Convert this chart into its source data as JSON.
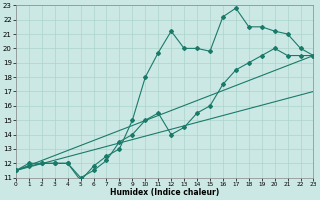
{
  "xlabel": "Humidex (Indice chaleur)",
  "xlim": [
    0,
    23
  ],
  "ylim": [
    11,
    23
  ],
  "xticks": [
    0,
    1,
    2,
    3,
    4,
    5,
    6,
    7,
    8,
    9,
    10,
    11,
    12,
    13,
    14,
    15,
    16,
    17,
    18,
    19,
    20,
    21,
    22,
    23
  ],
  "yticks": [
    11,
    12,
    13,
    14,
    15,
    16,
    17,
    18,
    19,
    20,
    21,
    22,
    23
  ],
  "bg_color": "#cce8e4",
  "grid_color": "#aad4cc",
  "line_color": "#1a7a6a",
  "line1_x": [
    0,
    1,
    2,
    3,
    4,
    5,
    6,
    7,
    8,
    9,
    10,
    11,
    12,
    13,
    14,
    15,
    16,
    17,
    18,
    19,
    20,
    21,
    22,
    23
  ],
  "line1_y": [
    11.5,
    12.0,
    12.0,
    12.0,
    12.0,
    10.8,
    11.8,
    12.5,
    13.0,
    15.0,
    18.0,
    19.7,
    21.2,
    20.0,
    20.0,
    19.8,
    22.2,
    22.8,
    21.5,
    21.5,
    21.2,
    21.0,
    20.0,
    19.5
  ],
  "line2_x": [
    0,
    1,
    2,
    3,
    4,
    5,
    6,
    7,
    8,
    9,
    10,
    11,
    12,
    13,
    14,
    15,
    16,
    17,
    18,
    19,
    20,
    21,
    22,
    23
  ],
  "line2_y": [
    11.5,
    11.8,
    12.0,
    12.0,
    12.0,
    11.0,
    11.5,
    12.2,
    13.5,
    14.0,
    15.0,
    15.5,
    14.0,
    14.5,
    15.5,
    16.0,
    17.5,
    18.5,
    19.0,
    19.5,
    20.0,
    19.5,
    19.5,
    19.5
  ],
  "line3_x": [
    0,
    23
  ],
  "line3_y": [
    11.5,
    19.5
  ],
  "line4_x": [
    0,
    23
  ],
  "line4_y": [
    11.5,
    17.0
  ]
}
